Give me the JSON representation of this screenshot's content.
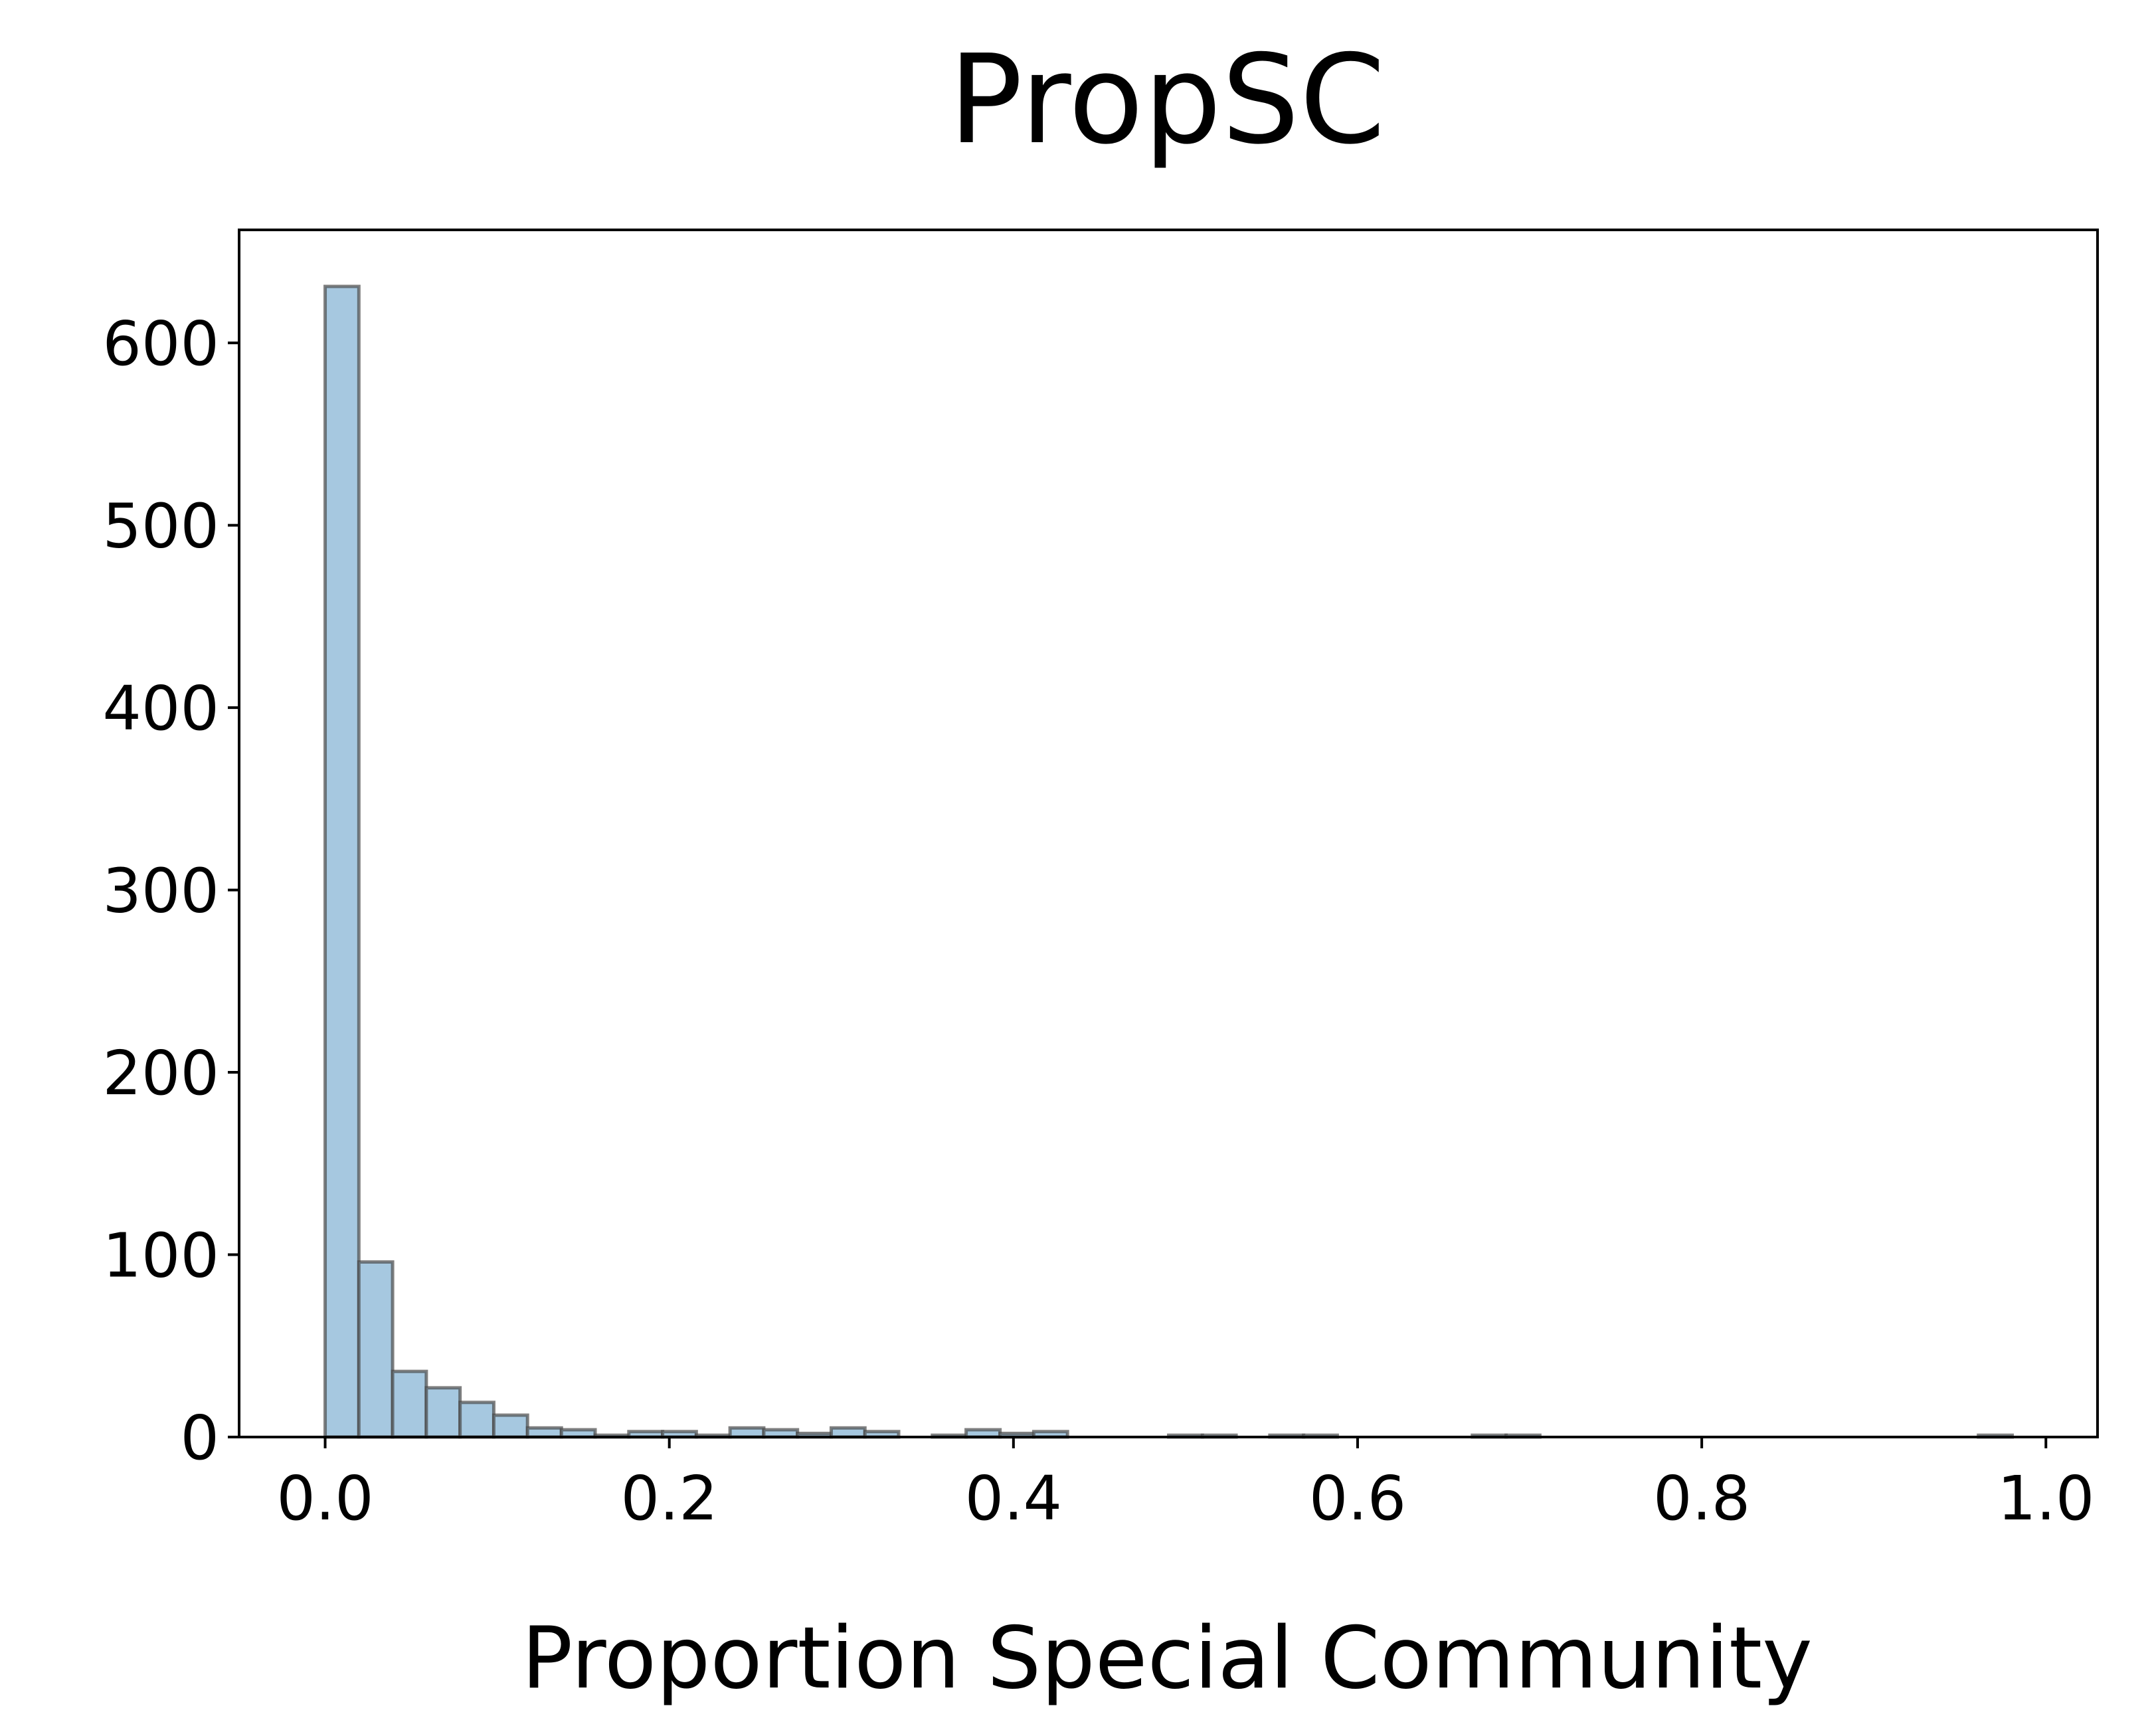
{
  "chart_data": {
    "type": "bar",
    "title": "PropSC",
    "xlabel": "Proportion Special Community",
    "ylabel": "",
    "xlim": [
      -0.05,
      1.03
    ],
    "ylim": [
      0,
      662
    ],
    "grid": false,
    "x_ticks": [
      0.0,
      0.2,
      0.4,
      0.6,
      0.8,
      1.0
    ],
    "x_tick_labels": [
      "0.0",
      "0.2",
      "0.4",
      "0.6",
      "0.8",
      "1.0"
    ],
    "y_ticks": [
      0,
      100,
      200,
      300,
      400,
      500,
      600
    ],
    "y_tick_labels": [
      "0",
      "100",
      "200",
      "300",
      "400",
      "500",
      "600"
    ],
    "bar_fill": "#a6c8e0",
    "bar_edge": "#4a4a4a",
    "bins": [
      {
        "x0": 0.0,
        "x1": 0.0196,
        "count": 631
      },
      {
        "x0": 0.0196,
        "x1": 0.0392,
        "count": 96
      },
      {
        "x0": 0.0392,
        "x1": 0.0588,
        "count": 36
      },
      {
        "x0": 0.0588,
        "x1": 0.0784,
        "count": 27
      },
      {
        "x0": 0.0784,
        "x1": 0.098,
        "count": 19
      },
      {
        "x0": 0.098,
        "x1": 0.1176,
        "count": 12
      },
      {
        "x0": 0.1176,
        "x1": 0.1373,
        "count": 5
      },
      {
        "x0": 0.1373,
        "x1": 0.1569,
        "count": 4
      },
      {
        "x0": 0.1569,
        "x1": 0.1765,
        "count": 1
      },
      {
        "x0": 0.1765,
        "x1": 0.1961,
        "count": 3
      },
      {
        "x0": 0.1961,
        "x1": 0.2157,
        "count": 3
      },
      {
        "x0": 0.2157,
        "x1": 0.2353,
        "count": 1
      },
      {
        "x0": 0.2353,
        "x1": 0.2549,
        "count": 5
      },
      {
        "x0": 0.2549,
        "x1": 0.2745,
        "count": 4
      },
      {
        "x0": 0.2745,
        "x1": 0.2941,
        "count": 2
      },
      {
        "x0": 0.2941,
        "x1": 0.3137,
        "count": 5
      },
      {
        "x0": 0.3137,
        "x1": 0.3333,
        "count": 3
      },
      {
        "x0": 0.3529,
        "x1": 0.3725,
        "count": 1
      },
      {
        "x0": 0.3725,
        "x1": 0.3922,
        "count": 4
      },
      {
        "x0": 0.3922,
        "x1": 0.4118,
        "count": 2
      },
      {
        "x0": 0.4118,
        "x1": 0.4314,
        "count": 3
      },
      {
        "x0": 0.4902,
        "x1": 0.5098,
        "count": 1
      },
      {
        "x0": 0.5098,
        "x1": 0.5294,
        "count": 1
      },
      {
        "x0": 0.549,
        "x1": 0.5686,
        "count": 1
      },
      {
        "x0": 0.5686,
        "x1": 0.5882,
        "count": 1
      },
      {
        "x0": 0.6667,
        "x1": 0.6863,
        "count": 1
      },
      {
        "x0": 0.6863,
        "x1": 0.7059,
        "count": 1
      },
      {
        "x0": 0.9608,
        "x1": 0.9804,
        "count": 1
      }
    ]
  }
}
